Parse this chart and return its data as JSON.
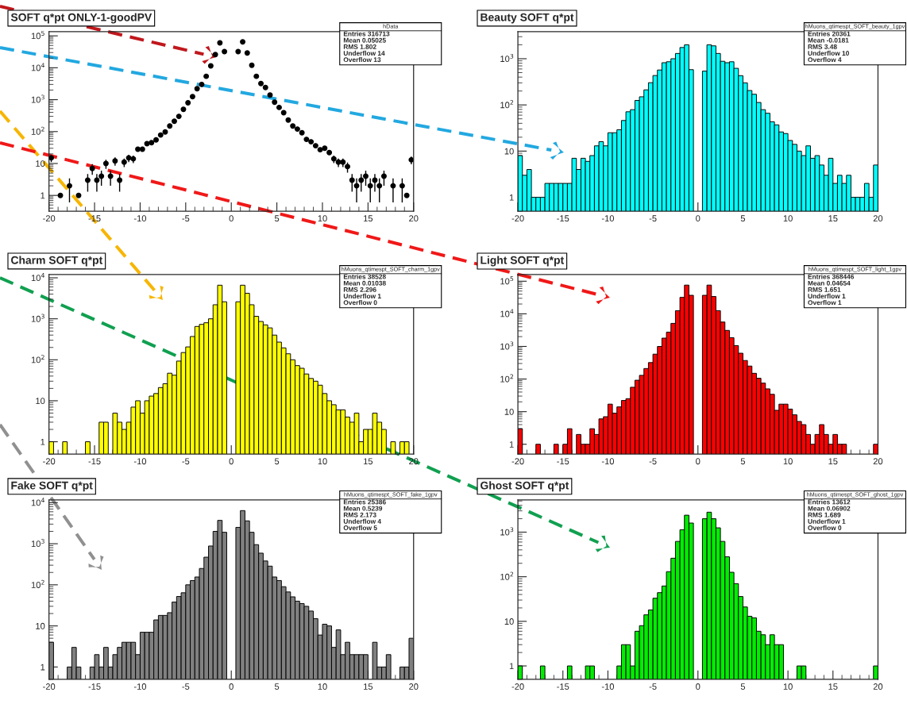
{
  "chart_data": [
    {
      "type": "scatter",
      "title": "SOFT q*pt ONLY-1-goodPV",
      "color": "#000000",
      "marker": "circle",
      "log": true,
      "grid": false,
      "annotations": [
        "hData",
        "Entries 316713",
        "Mean 0.05025",
        "RMS 1.802",
        "Underflow 14",
        "Overflow 13"
      ],
      "x": [
        -19.75,
        -19.25,
        -18.75,
        -18.25,
        -17.75,
        -17.25,
        -16.75,
        -16.25,
        -15.75,
        -15.25,
        -14.75,
        -14.25,
        -13.75,
        -13.25,
        -12.75,
        -12.25,
        -11.75,
        -11.25,
        -10.75,
        -10.25,
        -9.75,
        -9.25,
        -8.75,
        -8.25,
        -7.75,
        -7.25,
        -6.75,
        -6.25,
        -5.75,
        -5.25,
        -4.75,
        -4.25,
        -3.75,
        -3.25,
        -2.75,
        -2.25,
        -1.75,
        -1.25,
        -0.75,
        -0.25,
        0.25,
        0.75,
        1.25,
        1.75,
        2.25,
        2.75,
        3.25,
        3.75,
        4.25,
        4.75,
        5.25,
        5.75,
        6.25,
        6.75,
        7.25,
        7.75,
        8.25,
        8.75,
        9.25,
        9.75,
        10.25,
        10.75,
        11.25,
        11.75,
        12.25,
        12.75,
        13.25,
        13.75,
        14.25,
        14.75,
        15.25,
        15.75,
        16.25,
        16.75,
        17.25,
        17.75,
        18.25,
        18.75,
        19.25,
        19.75
      ],
      "values": [
        15,
        null,
        1,
        null,
        2,
        null,
        1,
        null,
        3,
        7,
        3,
        4,
        10,
        4,
        12,
        3,
        11,
        15,
        14,
        28,
        28,
        42,
        45,
        55,
        78,
        97,
        150,
        210,
        300,
        500,
        800,
        1250,
        2200,
        3000,
        5400,
        11500,
        26000,
        60000,
        32000,
        null,
        null,
        32000,
        65000,
        29000,
        12000,
        5400,
        3200,
        2400,
        1400,
        830,
        570,
        390,
        230,
        150,
        120,
        92,
        57,
        48,
        36,
        27,
        30,
        22,
        14,
        11,
        11,
        8,
        3,
        2,
        3,
        4,
        2,
        3,
        2,
        4,
        null,
        2,
        null,
        2,
        1,
        13
      ],
      "errors": [
        3.9,
        null,
        null,
        null,
        1.4,
        null,
        null,
        null,
        1.7,
        2.6,
        1.7,
        2,
        3.2,
        2,
        3.5,
        1.7,
        3.3,
        3.9,
        3.7,
        null,
        null,
        null,
        null,
        null,
        null,
        null,
        null,
        null,
        null,
        null,
        null,
        null,
        null,
        null,
        null,
        null,
        null,
        null,
        null,
        null,
        null,
        null,
        null,
        null,
        null,
        null,
        null,
        null,
        null,
        null,
        null,
        null,
        null,
        null,
        null,
        null,
        null,
        null,
        null,
        null,
        null,
        null,
        3.7,
        3.3,
        3.3,
        2.8,
        1.7,
        1.4,
        1.7,
        2,
        1.4,
        1.7,
        1.4,
        2,
        null,
        1.4,
        null,
        1.4,
        null,
        3.6
      ],
      "xlim": [
        -20,
        20
      ],
      "xticks": [
        -20,
        -15,
        -10,
        -5,
        0,
        5,
        10,
        15,
        20
      ],
      "ylim": [
        0.32,
        135000
      ],
      "yticks": [
        1,
        10,
        {
          "value": 100,
          "label": "10$^{2}$"
        },
        {
          "value": 1000,
          "label": "10$^{3}$"
        },
        {
          "value": 10000,
          "label": "10$^{4}$"
        },
        {
          "value": 100000,
          "label": "10$^{5}$"
        }
      ]
    },
    {
      "type": "histogram",
      "title": "Beauty SOFT q*pt",
      "color": "#00ffff",
      "log": true,
      "grid": false,
      "annotations": [
        "hMuons_qtimespt_SOFT_beauty_1gpv",
        "Entries 20361",
        "Mean -0.0181",
        "RMS 3.48",
        "Underflow 10",
        "Overflow 4"
      ],
      "bins": [
        -20,
        -19.5,
        -19,
        -18.5,
        -18,
        -17.5,
        -17,
        -16.5,
        -16,
        -15.5,
        -15,
        -14.5,
        -14,
        -13.5,
        -13,
        -12.5,
        -12,
        -11.5,
        -11,
        -10.5,
        -10,
        -9.5,
        -9,
        -8.5,
        -8,
        -7.5,
        -7,
        -6.5,
        -6,
        -5.5,
        -5,
        -4.5,
        -4,
        -3.5,
        -3,
        -2.5,
        -2,
        -1.5,
        -1,
        -0.5,
        0,
        0.5,
        1,
        1.5,
        2,
        2.5,
        3,
        3.5,
        4,
        4.5,
        5,
        5.5,
        6,
        6.5,
        7,
        7.5,
        8,
        8.5,
        9,
        9.5,
        10,
        10.5,
        11,
        11.5,
        12,
        12.5,
        13,
        13.5,
        14,
        14.5,
        15,
        15.5,
        16,
        16.5,
        17,
        17.5,
        18,
        18.5,
        19,
        19.5,
        20
      ],
      "values": [
        8,
        3,
        4,
        1,
        1,
        1,
        2,
        2,
        2,
        2,
        2,
        2,
        7,
        4,
        7,
        6,
        8,
        13,
        16,
        13,
        25,
        25,
        29,
        46,
        71,
        79,
        125,
        150,
        212,
        303,
        433,
        570,
        820,
        860,
        1000,
        1300,
        1750,
        2000,
        580,
        null,
        null,
        540,
        2000,
        1900,
        1300,
        880,
        820,
        860,
        620,
        430,
        300,
        205,
        170,
        113,
        79,
        66,
        43,
        37,
        26,
        24,
        17,
        14,
        10,
        8,
        13,
        7,
        8,
        5,
        3,
        7,
        2,
        3,
        2,
        3,
        1,
        1,
        1,
        2,
        1,
        5
      ],
      "xlim": [
        -20,
        20
      ],
      "xticks": [
        -20,
        -15,
        -10,
        -5,
        0,
        5,
        10,
        15,
        20
      ],
      "ylim": [
        0.5,
        3850
      ],
      "yticks": [
        1,
        10,
        {
          "value": 100,
          "label": "10$^{2}$"
        },
        {
          "value": 1000,
          "label": "10$^{3}$"
        }
      ]
    },
    {
      "type": "histogram",
      "title": "Charm SOFT q*pt",
      "color": "#ffff00",
      "log": true,
      "grid": false,
      "annotations": [
        "hMuons_qtimespt_SOFT_charm_1gpv",
        "Entries 38528",
        "Mean 0.01038",
        "RMS 2.296",
        "Underflow 1",
        "Overflow 0"
      ],
      "bins": [
        -20,
        -19.5,
        -19,
        -18.5,
        -18,
        -17.5,
        -17,
        -16.5,
        -16,
        -15.5,
        -15,
        -14.5,
        -14,
        -13.5,
        -13,
        -12.5,
        -12,
        -11.5,
        -11,
        -10.5,
        -10,
        -9.5,
        -9,
        -8.5,
        -8,
        -7.5,
        -7,
        -6.5,
        -6,
        -5.5,
        -5,
        -4.5,
        -4,
        -3.5,
        -3,
        -2.5,
        -2,
        -1.5,
        -1,
        -0.5,
        0,
        0.5,
        1,
        1.5,
        2,
        2.5,
        3,
        3.5,
        4,
        4.5,
        5,
        5.5,
        6,
        6.5,
        7,
        7.5,
        8,
        8.5,
        9,
        9.5,
        10,
        10.5,
        11,
        11.5,
        12,
        12.5,
        13,
        13.5,
        14,
        14.5,
        15,
        15.5,
        16,
        16.5,
        17,
        17.5,
        18,
        18.5,
        19,
        19.5,
        20
      ],
      "values": [
        1,
        null,
        null,
        1,
        null,
        null,
        null,
        null,
        1,
        null,
        null,
        3,
        3,
        null,
        5,
        3,
        2,
        3,
        7,
        10,
        5,
        10,
        13,
        15,
        21,
        26,
        47,
        42,
        93,
        150,
        206,
        370,
        650,
        730,
        800,
        1000,
        2200,
        6600,
        2600,
        null,
        null,
        2600,
        6600,
        4200,
        2200,
        1150,
        860,
        710,
        600,
        400,
        270,
        195,
        140,
        100,
        72,
        62,
        45,
        35,
        30,
        24,
        15,
        10,
        8,
        6,
        6,
        4,
        3,
        5,
        1,
        2,
        2,
        5,
        3,
        2,
        null,
        1,
        null,
        1,
        1,
        null
      ],
      "xlim": [
        -20,
        20
      ],
      "xticks": [
        -20,
        -15,
        -10,
        -5,
        0,
        5,
        10,
        15,
        20
      ],
      "ylim": [
        0.5,
        12000
      ],
      "yticks": [
        1,
        10,
        {
          "value": 100,
          "label": "10$^{2}$"
        },
        {
          "value": 1000,
          "label": "10$^{3}$"
        },
        {
          "value": 10000,
          "label": "10$^{4}$"
        }
      ]
    },
    {
      "type": "histogram",
      "title": "Light SOFT q*pt",
      "color": "#ff0000",
      "log": true,
      "grid": false,
      "annotations": [
        "hMuons_qtimespt_SOFT_light_1gpv",
        "Entries 368446",
        "Mean 0.04654",
        "RMS 1.651",
        "Underflow 1",
        "Overflow 1"
      ],
      "bins": [
        -20,
        -19.5,
        -19,
        -18.5,
        -18,
        -17.5,
        -17,
        -16.5,
        -16,
        -15.5,
        -15,
        -14.5,
        -14,
        -13.5,
        -13,
        -12.5,
        -12,
        -11.5,
        -11,
        -10.5,
        -10,
        -9.5,
        -9,
        -8.5,
        -8,
        -7.5,
        -7,
        -6.5,
        -6,
        -5.5,
        -5,
        -4.5,
        -4,
        -3.5,
        -3,
        -2.5,
        -2,
        -1.5,
        -1,
        -0.5,
        0,
        0.5,
        1,
        1.5,
        2,
        2.5,
        3,
        3.5,
        4,
        4.5,
        5,
        5.5,
        6,
        6.5,
        7,
        7.5,
        8,
        8.5,
        9,
        9.5,
        10,
        10.5,
        11,
        11.5,
        12,
        12.5,
        13,
        13.5,
        14,
        14.5,
        15,
        15.5,
        16,
        16.5,
        17,
        17.5,
        18,
        18.5,
        19,
        19.5,
        20
      ],
      "values": [
        3,
        null,
        null,
        null,
        1,
        null,
        null,
        null,
        1,
        null,
        1,
        3,
        null,
        2,
        1,
        1,
        3,
        2,
        6,
        7,
        17,
        9,
        14,
        22,
        25,
        56,
        92,
        130,
        210,
        320,
        580,
        1000,
        1800,
        2750,
        5100,
        12500,
        32000,
        76000,
        37000,
        null,
        null,
        37000,
        76000,
        34000,
        12500,
        5600,
        3100,
        1850,
        1060,
        620,
        370,
        250,
        150,
        106,
        75,
        50,
        34,
        11,
        17,
        17,
        12,
        8,
        5,
        4,
        2,
        1,
        2,
        4,
        2,
        1,
        2,
        1,
        1,
        null,
        null,
        null,
        null,
        null,
        null,
        1
      ],
      "xlim": [
        -20,
        20
      ],
      "xticks": [
        -20,
        -15,
        -10,
        -5,
        0,
        5,
        10,
        15,
        20
      ],
      "ylim": [
        0.5,
        160000
      ],
      "yticks": [
        1,
        10,
        {
          "value": 100,
          "label": "10$^{2}$"
        },
        {
          "value": 1000,
          "label": "10$^{3}$"
        },
        {
          "value": 10000,
          "label": "10$^{4}$"
        },
        {
          "value": 100000,
          "label": "10$^{5}$"
        }
      ]
    },
    {
      "type": "histogram",
      "title": "Fake SOFT q*pt",
      "color": "#808080",
      "log": true,
      "grid": false,
      "annotations": [
        "hMuons_qtimespt_SOFT_fake_1gpv",
        "Entries 25386",
        "Mean 0.5239",
        "RMS 2.173",
        "Underflow 4",
        "Overflow 5"
      ],
      "bins": [
        -20,
        -19.5,
        -19,
        -18.5,
        -18,
        -17.5,
        -17,
        -16.5,
        -16,
        -15.5,
        -15,
        -14.5,
        -14,
        -13.5,
        -13,
        -12.5,
        -12,
        -11.5,
        -11,
        -10.5,
        -10,
        -9.5,
        -9,
        -8.5,
        -8,
        -7.5,
        -7,
        -6.5,
        -6,
        -5.5,
        -5,
        -4.5,
        -4,
        -3.5,
        -3,
        -2.5,
        -2,
        -1.5,
        -1,
        -0.5,
        0,
        0.5,
        1,
        1.5,
        2,
        2.5,
        3,
        3.5,
        4,
        4.5,
        5,
        5.5,
        6,
        6.5,
        7,
        7.5,
        8,
        8.5,
        9,
        9.5,
        10,
        10.5,
        11,
        11.5,
        12,
        12.5,
        13,
        13.5,
        14,
        14.5,
        15,
        15.5,
        16,
        16.5,
        17,
        17.5,
        18,
        18.5,
        19,
        19.5,
        20
      ],
      "values": [
        4,
        null,
        null,
        null,
        1,
        3,
        1,
        null,
        null,
        1,
        2,
        1,
        3,
        1,
        2,
        3,
        4,
        4,
        4,
        2,
        7,
        7,
        7,
        14,
        18,
        18,
        21,
        38,
        52,
        64,
        100,
        127,
        155,
        250,
        470,
        880,
        2000,
        3700,
        1900,
        null,
        null,
        2500,
        6400,
        3600,
        1900,
        950,
        590,
        380,
        285,
        155,
        127,
        90,
        67,
        51,
        40,
        35,
        30,
        23,
        15,
        6,
        11,
        10,
        3,
        8,
        2,
        4,
        2,
        2,
        2,
        2,
        null,
        4,
        1,
        1,
        2,
        null,
        null,
        1,
        1,
        5
      ],
      "xlim": [
        -20,
        20
      ],
      "xticks": [
        -20,
        -15,
        -10,
        -5,
        0,
        5,
        10,
        15,
        20
      ],
      "ylim": [
        0.5,
        11700
      ],
      "yticks": [
        1,
        10,
        {
          "value": 100,
          "label": "10$^{2}$"
        },
        {
          "value": 1000,
          "label": "10$^{3}$"
        },
        {
          "value": 10000,
          "label": "10$^{4}$"
        }
      ]
    },
    {
      "type": "histogram",
      "title": "Ghost SOFT q*pt",
      "color": "#00ee00",
      "log": true,
      "grid": false,
      "annotations": [
        "hMuons_qtimespt_SOFT_ghost_1gpv",
        "Entries 13612",
        "Mean 0.06902",
        "RMS 1.689",
        "Underflow 1",
        "Overflow 0"
      ],
      "bins": [
        -20,
        -19.5,
        -19,
        -18.5,
        -18,
        -17.5,
        -17,
        -16.5,
        -16,
        -15.5,
        -15,
        -14.5,
        -14,
        -13.5,
        -13,
        -12.5,
        -12,
        -11.5,
        -11,
        -10.5,
        -10,
        -9.5,
        -9,
        -8.5,
        -8,
        -7.5,
        -7,
        -6.5,
        -6,
        -5.5,
        -5,
        -4.5,
        -4,
        -3.5,
        -3,
        -2.5,
        -2,
        -1.5,
        -1,
        -0.5,
        0,
        0.5,
        1,
        1.5,
        2,
        2.5,
        3,
        3.5,
        4,
        4.5,
        5,
        5.5,
        6,
        6.5,
        7,
        7.5,
        8,
        8.5,
        9,
        9.5,
        10,
        10.5,
        11,
        11.5,
        12,
        12.5,
        13,
        13.5,
        14,
        14.5,
        15,
        15.5,
        16,
        16.5,
        17,
        17.5,
        18,
        18.5,
        19,
        19.5,
        20
      ],
      "values": [
        1,
        null,
        null,
        null,
        null,
        1,
        null,
        null,
        null,
        null,
        null,
        1,
        null,
        null,
        null,
        1,
        1,
        null,
        null,
        null,
        null,
        null,
        1,
        3,
        3,
        1,
        6,
        8,
        14,
        18,
        33,
        44,
        62,
        130,
        260,
        620,
        1130,
        2400,
        1600,
        null,
        null,
        2000,
        2800,
        2000,
        1250,
        620,
        280,
        126,
        70,
        36,
        21,
        13,
        12,
        6,
        5,
        3,
        5,
        3,
        3,
        null,
        null,
        null,
        1,
        1,
        null,
        null,
        null,
        null,
        null,
        null,
        null,
        null,
        null,
        null,
        null,
        null,
        null,
        null,
        null,
        1
      ],
      "xlim": [
        -20,
        20
      ],
      "xticks": [
        -20,
        -15,
        -10,
        -5,
        0,
        5,
        10,
        15,
        20
      ],
      "ylim": [
        0.5,
        5300
      ],
      "yticks": [
        1,
        10,
        {
          "value": 100,
          "label": "10$^{2}$"
        },
        {
          "value": 1000,
          "label": "10$^{3}$"
        }
      ]
    }
  ]
}
